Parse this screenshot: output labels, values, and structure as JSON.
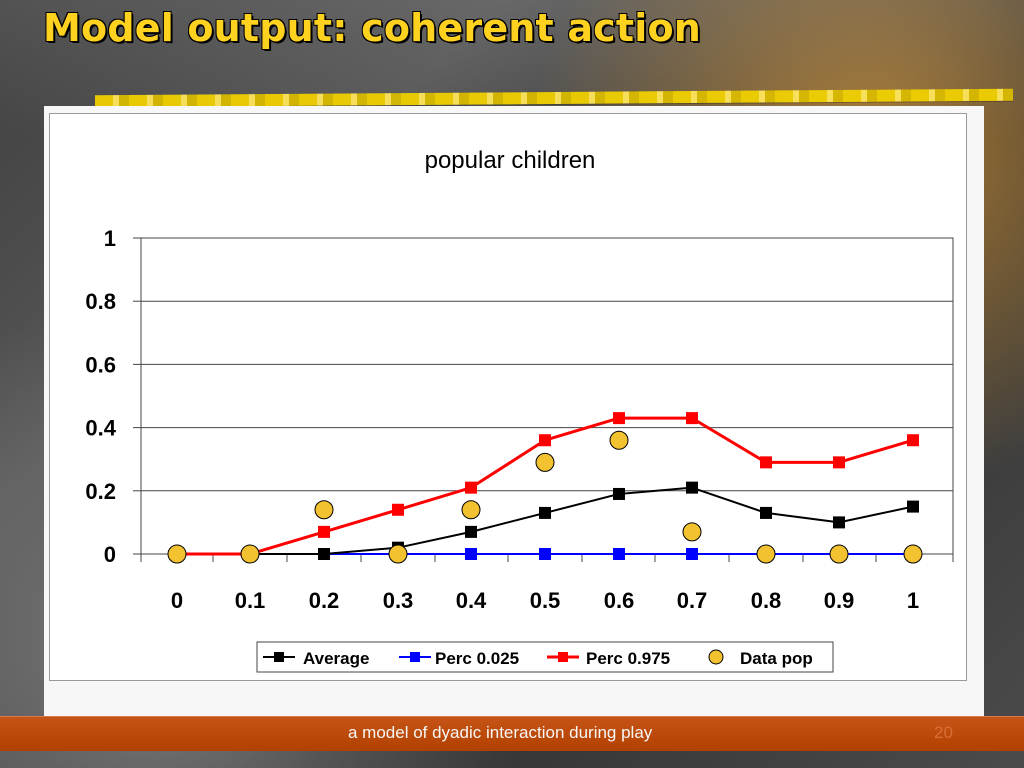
{
  "slide": {
    "title": "Model output: coherent action",
    "footer": "a model of dyadic interaction during play",
    "page_number": "20"
  },
  "chart_data": {
    "type": "line",
    "title": "popular children",
    "x": [
      0,
      0.1,
      0.2,
      0.3,
      0.4,
      0.5,
      0.6,
      0.7,
      0.8,
      0.9,
      1
    ],
    "x_tick_labels": [
      "0",
      "0.1",
      "0.2",
      "0.3",
      "0.4",
      "0.5",
      "0.6",
      "0.7",
      "0.8",
      "0.9",
      "1"
    ],
    "y_ticks": [
      0,
      0.2,
      0.4,
      0.6,
      0.8,
      1
    ],
    "y_tick_labels": [
      "0",
      "0.2",
      "0.4",
      "0.6",
      "0.8",
      "1"
    ],
    "ylim": [
      0,
      1
    ],
    "grid": true,
    "legend_position": "bottom",
    "series": [
      {
        "name": "Average",
        "color": "#000000",
        "marker": "square",
        "line": true,
        "values": [
          0,
          0,
          0,
          0.02,
          0.07,
          0.13,
          0.19,
          0.21,
          0.13,
          0.1,
          0.15
        ]
      },
      {
        "name": "Perc 0.025",
        "color": "#0000ff",
        "marker": "square",
        "line": true,
        "values": [
          0,
          0,
          0,
          0,
          0,
          0,
          0,
          0,
          0,
          0,
          0
        ]
      },
      {
        "name": "Perc 0.975",
        "color": "#ff0000",
        "marker": "square",
        "line": true,
        "values": [
          0,
          0,
          0.07,
          0.14,
          0.21,
          0.36,
          0.43,
          0.43,
          0.29,
          0.29,
          0.36
        ]
      },
      {
        "name": "Data pop",
        "color": "#f2c230",
        "marker": "circle",
        "line": false,
        "values": [
          0,
          0,
          0.14,
          0,
          0.14,
          0.29,
          0.36,
          0.07,
          0,
          0,
          0
        ]
      }
    ]
  }
}
